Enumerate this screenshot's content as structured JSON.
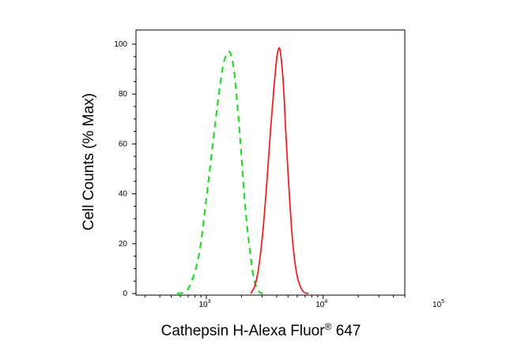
{
  "chart_data": {
    "type": "line",
    "xlabel": "Cathepsin H-Alexa Fluor® 647",
    "xlabel_main": "Cathepsin H-Alexa Fluor",
    "xlabel_sup": "®",
    "xlabel_tail": " 647",
    "ylabel": "Cell Counts (% Max)",
    "x_scale": "log",
    "xlim": [
      250,
      50000
    ],
    "ylim": [
      0,
      100
    ],
    "grid": false,
    "legend": "none",
    "y_ticks": [
      0,
      20,
      40,
      60,
      80,
      100
    ],
    "x_ticks": [
      {
        "value": 1000,
        "base": "10",
        "exp": "3"
      },
      {
        "value": 10000,
        "base": "10",
        "exp": "4"
      },
      {
        "value": 100000,
        "base": "10",
        "exp": "5"
      }
    ],
    "series": [
      {
        "style": "dashed",
        "color": "#22dd22",
        "x": [
          560,
          700,
          860,
          1000,
          1150,
          1280,
          1400,
          1500,
          1560,
          1620,
          1720,
          1850,
          2000,
          2150,
          2350,
          2550,
          2800,
          3050
        ],
        "y": [
          0,
          2,
          15,
          38,
          62,
          80,
          92,
          96,
          97,
          96,
          90,
          75,
          55,
          35,
          18,
          6,
          1,
          0
        ]
      },
      {
        "style": "solid",
        "color": "#ee2222",
        "x": [
          2400,
          2600,
          2800,
          3050,
          3300,
          3550,
          3800,
          4000,
          4150,
          4300,
          4550,
          4800,
          5100,
          5500,
          6000,
          6700,
          7500
        ],
        "y": [
          0,
          3,
          10,
          25,
          45,
          66,
          83,
          94,
          98,
          97,
          85,
          64,
          42,
          20,
          7,
          1,
          0
        ]
      }
    ]
  }
}
